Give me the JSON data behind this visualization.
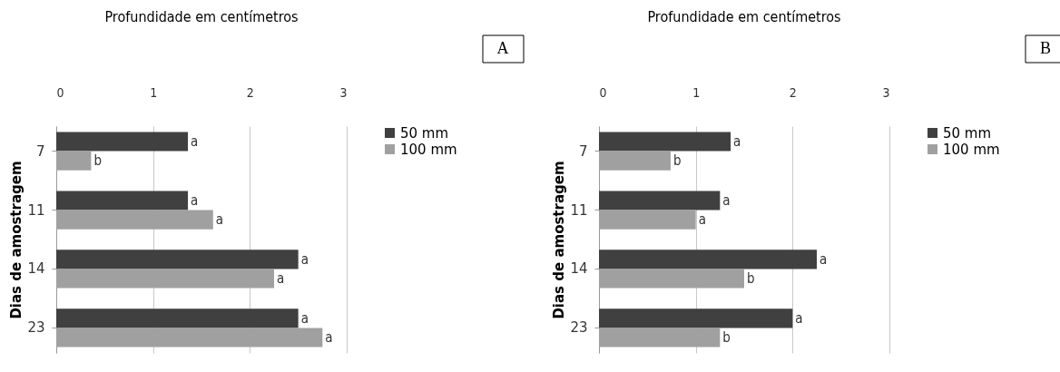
{
  "chart_data": [
    {
      "type": "bar",
      "orientation": "horizontal",
      "title": "Profundidade em  centímetros",
      "ylabel": "Dias de amostragem",
      "categories": [
        "7",
        "11",
        "14",
        "23"
      ],
      "xlim": [
        0,
        3
      ],
      "xticks": [
        0,
        1,
        2,
        3
      ],
      "grid": "x",
      "legend": "right",
      "annotations": [
        "A"
      ],
      "series": [
        {
          "name": "50 mm",
          "color": "#404040",
          "values": [
            1.36,
            1.36,
            2.5,
            2.5
          ],
          "value_labels": [
            "a",
            "a",
            "a",
            "a"
          ]
        },
        {
          "name": "100 mm",
          "color": "#a0a0a0",
          "values": [
            0.36,
            1.62,
            2.25,
            2.75
          ],
          "value_labels": [
            "b",
            "a",
            "a",
            "a"
          ]
        }
      ]
    },
    {
      "type": "bar",
      "orientation": "horizontal",
      "title": "Profundidade em centímetros",
      "ylabel": "Dias de amostragem",
      "categories": [
        "7",
        "11",
        "14",
        "23"
      ],
      "xlim": [
        0,
        3
      ],
      "xticks": [
        0,
        1,
        2,
        3
      ],
      "grid": "x",
      "legend": "right",
      "annotations": [
        "B"
      ],
      "series": [
        {
          "name": "50 mm",
          "color": "#404040",
          "values": [
            1.36,
            1.25,
            2.25,
            2.0
          ],
          "value_labels": [
            "a",
            "a",
            "a",
            "a"
          ]
        },
        {
          "name": "100 mm",
          "color": "#a0a0a0",
          "values": [
            0.74,
            1.0,
            1.5,
            1.25
          ],
          "value_labels": [
            "b",
            "a",
            "b",
            "b"
          ]
        }
      ]
    }
  ]
}
